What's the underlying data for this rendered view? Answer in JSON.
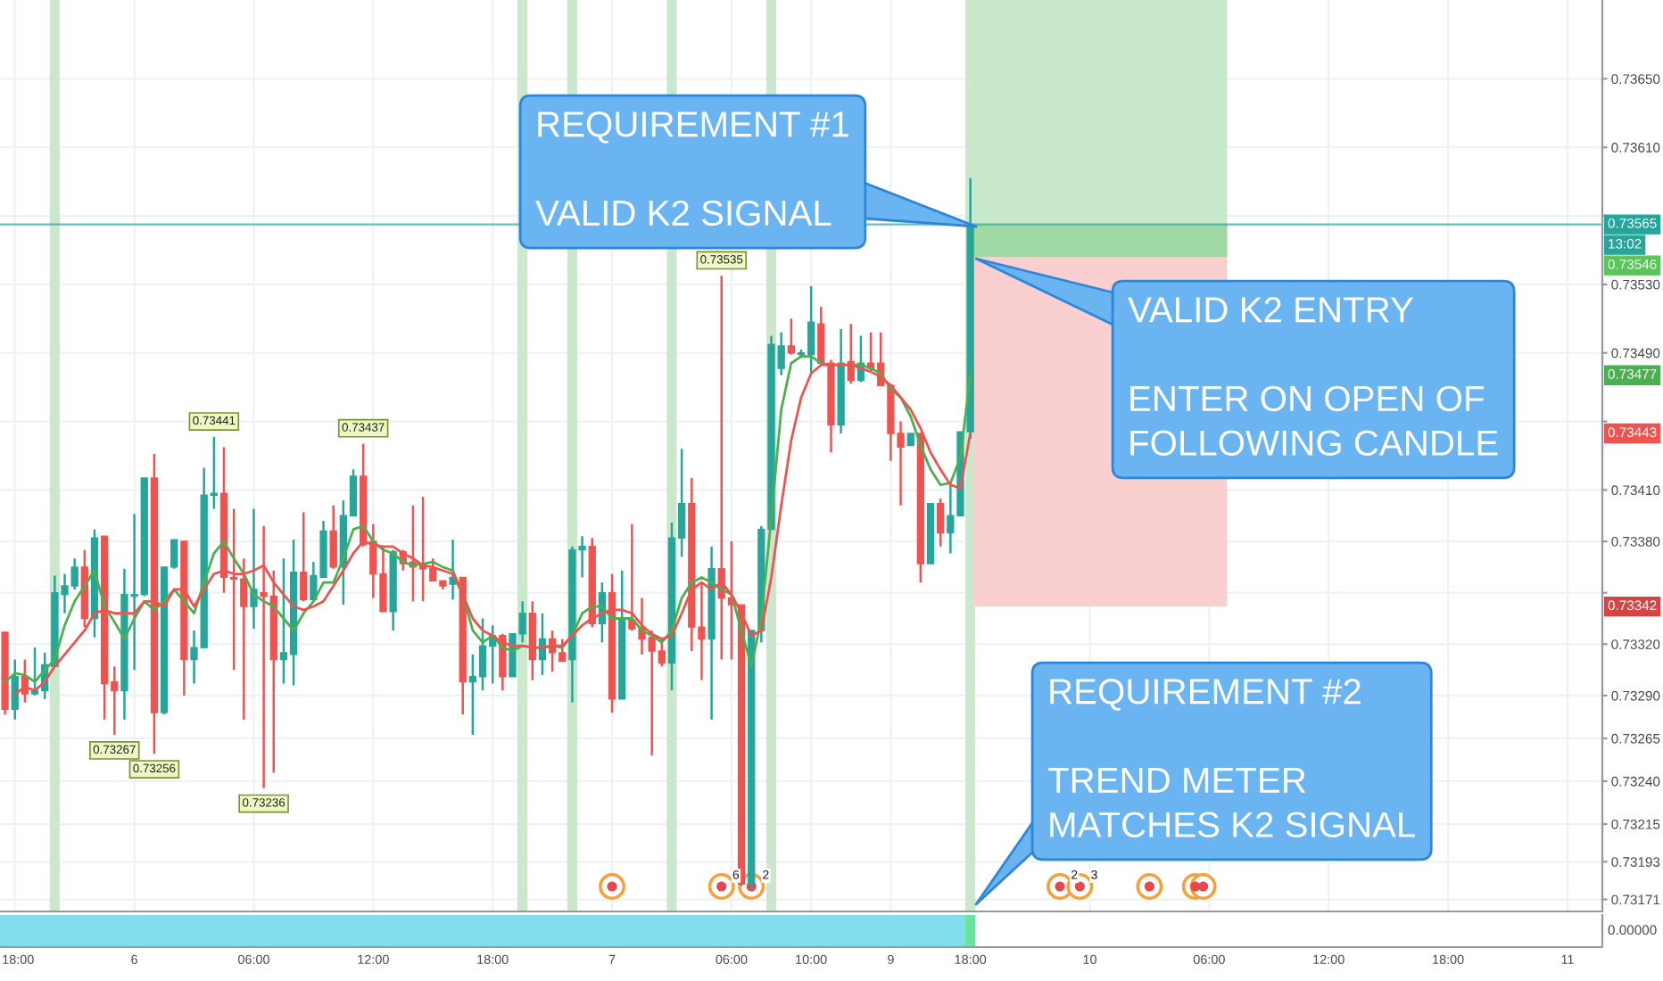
{
  "chart_data": {
    "type": "candlestick",
    "categories": [
      null,
      "18:00",
      null,
      null,
      null,
      null,
      null,
      null,
      null,
      null,
      null,
      null,
      null,
      "6",
      null,
      null,
      null,
      null,
      null,
      null,
      null,
      null,
      null,
      null,
      null,
      "06:00",
      null,
      null,
      null,
      null,
      null,
      null,
      null,
      null,
      null,
      null,
      null,
      "12:00",
      null,
      null,
      null,
      null,
      null,
      null,
      null,
      null,
      null,
      null,
      null,
      "18:00",
      null,
      null,
      null,
      null,
      null,
      null,
      null,
      null,
      null,
      null,
      null,
      "7",
      null,
      null,
      null,
      null,
      null,
      null,
      null,
      null,
      null,
      null,
      null,
      "06:00",
      null,
      null,
      null,
      null,
      null,
      null,
      null,
      "10:00",
      null,
      null,
      null,
      null,
      null,
      null,
      null,
      "9",
      null,
      null,
      null,
      null,
      null,
      null,
      null,
      "18:00",
      null,
      null,
      null,
      null,
      null,
      null,
      null,
      null,
      null,
      null,
      null,
      "10",
      null,
      null,
      null,
      null,
      null,
      null,
      null,
      null,
      null,
      null,
      null,
      "06:00",
      null,
      null,
      null,
      null,
      null,
      null,
      null,
      null,
      null,
      null,
      null,
      "12:00",
      null,
      null,
      null,
      null,
      null,
      null,
      null,
      null,
      null,
      null,
      null,
      "18:00",
      null,
      null,
      null,
      null,
      null,
      null,
      null,
      null,
      null,
      null,
      null,
      "11",
      null,
      null,
      null
    ],
    "ohlc": [
      [
        0.73327,
        0.73327,
        0.73279,
        0.73282
      ],
      [
        0.73282,
        0.73311,
        0.73276,
        0.73301
      ],
      [
        0.73301,
        0.73311,
        0.73286,
        0.73291
      ],
      [
        0.73291,
        0.73318,
        0.7329,
        0.73293
      ],
      [
        0.73293,
        0.73315,
        0.73288,
        0.73308
      ],
      [
        0.73307,
        0.7336,
        0.73307,
        0.7335
      ],
      [
        0.73349,
        0.73361,
        0.73338,
        0.73354
      ],
      [
        0.73354,
        0.7337,
        0.73352,
        0.73365
      ],
      [
        0.73365,
        0.73375,
        0.7333,
        0.73335
      ],
      [
        0.73335,
        0.73387,
        0.73324,
        0.73382
      ],
      [
        0.73383,
        0.73383,
        0.73276,
        0.73297
      ],
      [
        0.73298,
        0.73307,
        0.73267,
        0.73293
      ],
      [
        0.73293,
        0.73364,
        0.73276,
        0.73349
      ],
      [
        0.73348,
        0.73396,
        0.73305,
        0.73349
      ],
      [
        0.73349,
        0.73417,
        0.73348,
        0.73417
      ],
      [
        0.73417,
        0.73431,
        0.73256,
        0.7328
      ],
      [
        0.7328,
        0.73365,
        0.73279,
        0.73365
      ],
      [
        0.73365,
        0.73381,
        0.73364,
        0.73381
      ],
      [
        0.7338,
        0.7338,
        0.7329,
        0.73311
      ],
      [
        0.73311,
        0.73328,
        0.73297,
        0.73318
      ],
      [
        0.73318,
        0.73423,
        0.73318,
        0.73407
      ],
      [
        0.73407,
        0.73441,
        0.73399,
        0.73408
      ],
      [
        0.73408,
        0.73435,
        0.7335,
        0.73359
      ],
      [
        0.73359,
        0.73399,
        0.73305,
        0.73358
      ],
      [
        0.73358,
        0.7337,
        0.73276,
        0.73342
      ],
      [
        0.73342,
        0.73399,
        0.73329,
        0.73352
      ],
      [
        0.7335,
        0.73389,
        0.73236,
        0.73348
      ],
      [
        0.73348,
        0.73363,
        0.73245,
        0.73311
      ],
      [
        0.73311,
        0.7337,
        0.73297,
        0.73315
      ],
      [
        0.73314,
        0.73381,
        0.73296,
        0.73362
      ],
      [
        0.73362,
        0.73397,
        0.73345,
        0.73346
      ],
      [
        0.73346,
        0.73368,
        0.73346,
        0.7336
      ],
      [
        0.73359,
        0.73392,
        0.73359,
        0.73386
      ],
      [
        0.73386,
        0.73401,
        0.73364,
        0.73365
      ],
      [
        0.73365,
        0.73404,
        0.73343,
        0.73395
      ],
      [
        0.73395,
        0.73422,
        0.73395,
        0.73418
      ],
      [
        0.73418,
        0.73437,
        0.73377,
        0.73378
      ],
      [
        0.7338,
        0.7339,
        0.73347,
        0.73361
      ],
      [
        0.73361,
        0.73377,
        0.73339,
        0.73339
      ],
      [
        0.73339,
        0.73375,
        0.73328,
        0.73374
      ],
      [
        0.73374,
        0.73375,
        0.73363,
        0.73367
      ],
      [
        0.73368,
        0.73401,
        0.73345,
        0.73365
      ],
      [
        0.73366,
        0.73406,
        0.73345,
        0.73364
      ],
      [
        0.73364,
        0.7337,
        0.73357,
        0.73357
      ],
      [
        0.73357,
        0.73357,
        0.73352,
        0.73354
      ],
      [
        0.73355,
        0.73381,
        0.73346,
        0.73359
      ],
      [
        0.73359,
        0.73359,
        0.73279,
        0.73298
      ],
      [
        0.73298,
        0.73314,
        0.73267,
        0.73301
      ],
      [
        0.73301,
        0.73335,
        0.73293,
        0.73319
      ],
      [
        0.73319,
        0.73331,
        0.73297,
        0.73325
      ],
      [
        0.73325,
        0.73326,
        0.73293,
        0.73301
      ],
      [
        0.73301,
        0.73326,
        0.73301,
        0.73326
      ],
      [
        0.73326,
        0.73345,
        0.73321,
        0.73338
      ],
      [
        0.73338,
        0.73345,
        0.73299,
        0.73311
      ],
      [
        0.73311,
        0.73338,
        0.73302,
        0.73323
      ],
      [
        0.73323,
        0.73328,
        0.73304,
        0.73315
      ],
      [
        0.73315,
        0.73323,
        0.7331,
        0.7331
      ],
      [
        0.73311,
        0.73377,
        0.73286,
        0.73375
      ],
      [
        0.73375,
        0.73383,
        0.73359,
        0.73377
      ],
      [
        0.73377,
        0.73382,
        0.7333,
        0.73332
      ],
      [
        0.73332,
        0.73356,
        0.73321,
        0.7335
      ],
      [
        0.7335,
        0.73361,
        0.7328,
        0.73288
      ],
      [
        0.73288,
        0.73363,
        0.73288,
        0.73334
      ],
      [
        0.73334,
        0.7339,
        0.73328,
        0.73329
      ],
      [
        0.7333,
        0.73347,
        0.73314,
        0.73323
      ],
      [
        0.73324,
        0.73328,
        0.73255,
        0.73316
      ],
      [
        0.73316,
        0.73324,
        0.73307,
        0.73309
      ],
      [
        0.73309,
        0.73391,
        0.73293,
        0.73382
      ],
      [
        0.73382,
        0.73434,
        0.73371,
        0.73402
      ],
      [
        0.73402,
        0.73417,
        0.73316,
        0.7333
      ],
      [
        0.7333,
        0.73356,
        0.73299,
        0.73323
      ],
      [
        0.73323,
        0.73377,
        0.73276,
        0.73364
      ],
      [
        0.73364,
        0.73535,
        0.73311,
        0.73347
      ],
      [
        0.73347,
        0.7338,
        0.73311,
        0.73343
      ],
      [
        0.73343,
        0.73343,
        0.73179,
        0.7318
      ],
      [
        0.7318,
        0.73328,
        0.73177,
        0.73328
      ],
      [
        0.73328,
        0.73389,
        0.73321,
        0.73387
      ],
      [
        0.73387,
        0.735,
        0.73387,
        0.73495
      ],
      [
        0.73481,
        0.73502,
        0.73477,
        0.73494
      ],
      [
        0.73494,
        0.7351,
        0.73489,
        0.7349
      ],
      [
        0.73489,
        0.73492,
        0.73487,
        0.7349
      ],
      [
        0.73489,
        0.73529,
        0.73478,
        0.73508
      ],
      [
        0.73507,
        0.73517,
        0.73483,
        0.73484
      ],
      [
        0.73484,
        0.73486,
        0.73432,
        0.73448
      ],
      [
        0.73448,
        0.73504,
        0.73443,
        0.73484
      ],
      [
        0.73485,
        0.73507,
        0.73472,
        0.73474
      ],
      [
        0.73474,
        0.735,
        0.73473,
        0.73484
      ],
      [
        0.73484,
        0.73502,
        0.73479,
        0.73481
      ],
      [
        0.73484,
        0.73502,
        0.73471,
        0.73471
      ],
      [
        0.73471,
        0.73472,
        0.73427,
        0.73443
      ],
      [
        0.73443,
        0.7345,
        0.73401,
        0.73435
      ],
      [
        0.73436,
        0.73443,
        0.73436,
        0.73443
      ],
      [
        0.73443,
        0.73443,
        0.73356,
        0.73367
      ],
      [
        0.73367,
        0.73402,
        0.73367,
        0.73402
      ],
      [
        0.73402,
        0.73405,
        0.73377,
        0.73385
      ],
      [
        0.73385,
        0.73413,
        0.73373,
        0.73395
      ],
      [
        0.73395,
        0.73444,
        0.73395,
        0.73444
      ],
      [
        0.73444,
        0.73592,
        0.7344,
        0.73565
      ],
      null,
      null,
      null,
      null,
      null,
      null,
      null,
      null,
      null,
      null,
      null,
      null,
      null,
      null,
      null,
      null,
      null,
      null,
      null,
      null,
      null,
      null,
      null,
      null,
      null,
      null,
      null,
      null,
      null,
      null,
      null,
      null,
      null,
      null,
      null,
      null,
      null,
      null,
      null,
      null,
      null,
      null,
      null,
      null,
      null,
      null,
      null,
      null,
      null,
      null,
      null,
      null,
      null,
      null,
      null,
      null,
      null,
      null,
      null,
      null,
      null,
      null,
      null
    ],
    "series": [
      {
        "type": "line",
        "color": "#4caf50",
        "values": [
          0.73298,
          0.73303,
          0.73302,
          0.73298,
          0.73305,
          0.73311,
          0.73331,
          0.73345,
          0.73354,
          0.73363,
          0.73342,
          0.73333,
          0.73323,
          0.73335,
          0.73345,
          0.7334,
          0.73345,
          0.73352,
          0.73345,
          0.73338,
          0.73356,
          0.73373,
          0.7338,
          0.7337,
          0.73361,
          0.73349,
          0.73345,
          0.73342,
          0.73335,
          0.73328,
          0.73338,
          0.73345,
          0.73356,
          0.73356,
          0.7337,
          0.73387,
          0.73389,
          0.7338,
          0.73375,
          0.73373,
          0.73368,
          0.73366,
          0.73367,
          0.73368,
          0.73365,
          0.73363,
          0.73349,
          0.73328,
          0.73321,
          0.73325,
          0.73318,
          0.73316,
          0.73319,
          0.73318,
          0.73318,
          0.73319,
          0.73318,
          0.73325,
          0.73338,
          0.73342,
          0.73342,
          0.73335,
          0.73335,
          0.73335,
          0.73328,
          0.73325,
          0.73321,
          0.73328,
          0.73347,
          0.73356,
          0.73359,
          0.73356,
          0.73352,
          0.73349,
          0.73328,
          0.73307,
          0.73335,
          0.73394,
          0.73457,
          0.73484,
          0.73488,
          0.73488,
          0.73484,
          0.73483,
          0.73483,
          0.73483,
          0.73483,
          0.73481,
          0.73478,
          0.73469,
          0.73464,
          0.73453,
          0.73436,
          0.73422,
          0.73413,
          0.73414,
          0.73429,
          0.73477,
          null,
          null,
          null,
          null,
          null,
          null,
          null,
          null,
          null,
          null,
          null,
          null,
          null,
          null,
          null,
          null,
          null,
          null,
          null,
          null,
          null,
          null,
          null,
          null,
          null,
          null,
          null,
          null,
          null,
          null,
          null,
          null,
          null,
          null,
          null,
          null,
          null,
          null,
          null,
          null,
          null,
          null,
          null,
          null,
          null,
          null,
          null,
          null,
          null,
          null,
          null,
          null,
          null,
          null,
          null,
          null,
          null,
          null,
          null,
          null,
          null,
          null,
          null
        ]
      },
      {
        "type": "line",
        "color": "#ef5350",
        "values": [
          null,
          0.73291,
          0.73295,
          0.73293,
          0.73298,
          0.73307,
          0.73314,
          0.73321,
          0.73328,
          0.73338,
          0.7334,
          0.73338,
          0.73338,
          0.73338,
          0.73345,
          0.73345,
          0.73342,
          0.73352,
          0.73352,
          0.73342,
          0.73352,
          0.73361,
          0.73363,
          0.73361,
          0.73361,
          0.73363,
          0.73366,
          0.73356,
          0.73349,
          0.73342,
          0.7334,
          0.73342,
          0.73345,
          0.73354,
          0.73363,
          0.73373,
          0.7338,
          0.73378,
          0.73377,
          0.73377,
          0.73373,
          0.7337,
          0.73366,
          0.73365,
          0.73363,
          0.73361,
          0.73349,
          0.73335,
          0.73328,
          0.73325,
          0.73321,
          0.73319,
          0.73319,
          0.73318,
          0.73318,
          0.73319,
          0.73319,
          0.73325,
          0.73331,
          0.73335,
          0.73338,
          0.7334,
          0.7334,
          0.73338,
          0.73331,
          0.73326,
          0.73323,
          0.73325,
          0.73338,
          0.73352,
          0.73356,
          0.73352,
          0.73356,
          0.73349,
          0.73338,
          0.73325,
          0.73328,
          0.73359,
          0.73401,
          0.73439,
          0.73464,
          0.73478,
          0.73483,
          0.73483,
          0.73483,
          0.73483,
          0.73481,
          0.73479,
          0.73476,
          0.73471,
          0.73464,
          0.73457,
          0.73446,
          0.73432,
          0.73422,
          0.73413,
          0.73411,
          0.73443,
          null,
          null,
          null,
          null,
          null,
          null,
          null,
          null,
          null,
          null,
          null,
          null,
          null,
          null,
          null,
          null,
          null,
          null,
          null,
          null,
          null,
          null,
          null,
          null,
          null,
          null,
          null,
          null,
          null,
          null,
          null,
          null,
          null,
          null,
          null,
          null,
          null,
          null,
          null,
          null,
          null,
          null,
          null,
          null,
          null,
          null,
          null,
          null,
          null,
          null,
          null,
          null,
          null,
          null,
          null,
          null,
          null,
          null,
          null,
          null,
          null,
          null,
          null
        ]
      }
    ],
    "ylim": [
      0.73164,
      0.73696
    ],
    "yticks": [
      {
        "value": 0.7365,
        "label": "0.73650"
      },
      {
        "value": 0.7361,
        "label": "0.73610"
      },
      {
        "value": 0.7357,
        "label": null
      },
      {
        "value": 0.7353,
        "label": "0.73530"
      },
      {
        "value": 0.7349,
        "label": "0.73490"
      },
      {
        "value": 0.7345,
        "label": null
      },
      {
        "value": 0.7341,
        "label": "0.73410"
      },
      {
        "value": 0.7338,
        "label": "0.73380"
      },
      {
        "value": 0.7335,
        "label": null
      },
      {
        "value": 0.7332,
        "label": "0.73320"
      },
      {
        "value": 0.7329,
        "label": "0.73290"
      },
      {
        "value": 0.73265,
        "label": "0.73265"
      },
      {
        "value": 0.7324,
        "label": "0.73240"
      },
      {
        "value": 0.73215,
        "label": "0.73215"
      },
      {
        "value": 0.73193,
        "label": "0.73193"
      },
      {
        "value": 0.73171,
        "label": "0.73171"
      }
    ],
    "grid": true,
    "bands": [
      {
        "axis": "y",
        "from": 0.73546,
        "to": 0.73696,
        "color": "#c8e9c9"
      },
      {
        "axis": "y",
        "from": 0.73342,
        "to": 0.73546,
        "color": "#f9cfcf"
      },
      {
        "axis": "y",
        "from": 0.73546,
        "to": 0.73565,
        "color": "#9fd8a3"
      }
    ],
    "ref_lines": [
      {
        "axis": "y",
        "value": 0.73565,
        "label": "0.73565",
        "color": "#26a69a"
      }
    ],
    "annotations": [
      "REQUIREMENT #1\n\nVALID K2 SIGNAL",
      "VALID K2 ENTRY\n\nENTER ON OPEN OF\nFOLLOWING CANDLE",
      "REQUIREMENT #2\n\nTREND METER\nMATCHES K2 SIGNAL",
      {
        "text": "0.73441",
        "y": 0.73441
      },
      {
        "text": "0.73256",
        "y": 0.73256
      },
      {
        "text": "0.73236",
        "y": 0.73236
      },
      {
        "text": "0.73437",
        "y": 0.73437
      },
      {
        "text": "0.73267",
        "y": 0.73267
      },
      {
        "text": "0.73535",
        "y": 0.73535
      },
      "6",
      "2",
      "2",
      "3",
      "13:02",
      "0.73477",
      "0.73443",
      "0.73546",
      "0.73342",
      "0.00000"
    ]
  }
}
